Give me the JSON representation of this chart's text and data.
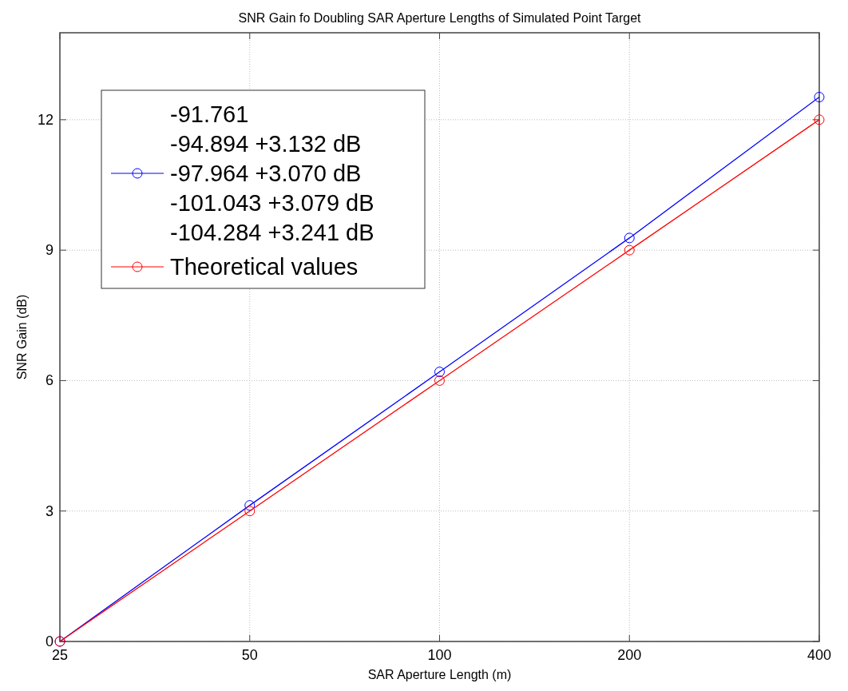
{
  "chart_data": {
    "type": "line",
    "title": "SNR Gain fo Doubling SAR Aperture Lengths of Simulated Point Target",
    "xlabel": "SAR Aperture Length (m)",
    "ylabel": "SNR Gain (dB)",
    "x": [
      25,
      50,
      100,
      200,
      400
    ],
    "log": "x",
    "xlim": [
      25,
      400
    ],
    "xticks": [
      25,
      50,
      100,
      200,
      400
    ],
    "ylim": [
      0,
      14
    ],
    "yticks": [
      0,
      3,
      6,
      9,
      12
    ],
    "grid": true,
    "legend": "top left",
    "marker": "circle",
    "line_style": "solid",
    "series": [
      {
        "name": "-91.761\n-94.894 +3.132 dB\n-97.964 +3.070 dB\n-101.043 +3.079 dB\n-104.284 +3.241 dB",
        "color": "#0000ff",
        "values": [
          0,
          3.13,
          6.2,
          9.28,
          12.52
        ]
      },
      {
        "name": "Theoretical values",
        "color": "#ff0000",
        "values": [
          0,
          3,
          6,
          9,
          12
        ]
      }
    ]
  }
}
